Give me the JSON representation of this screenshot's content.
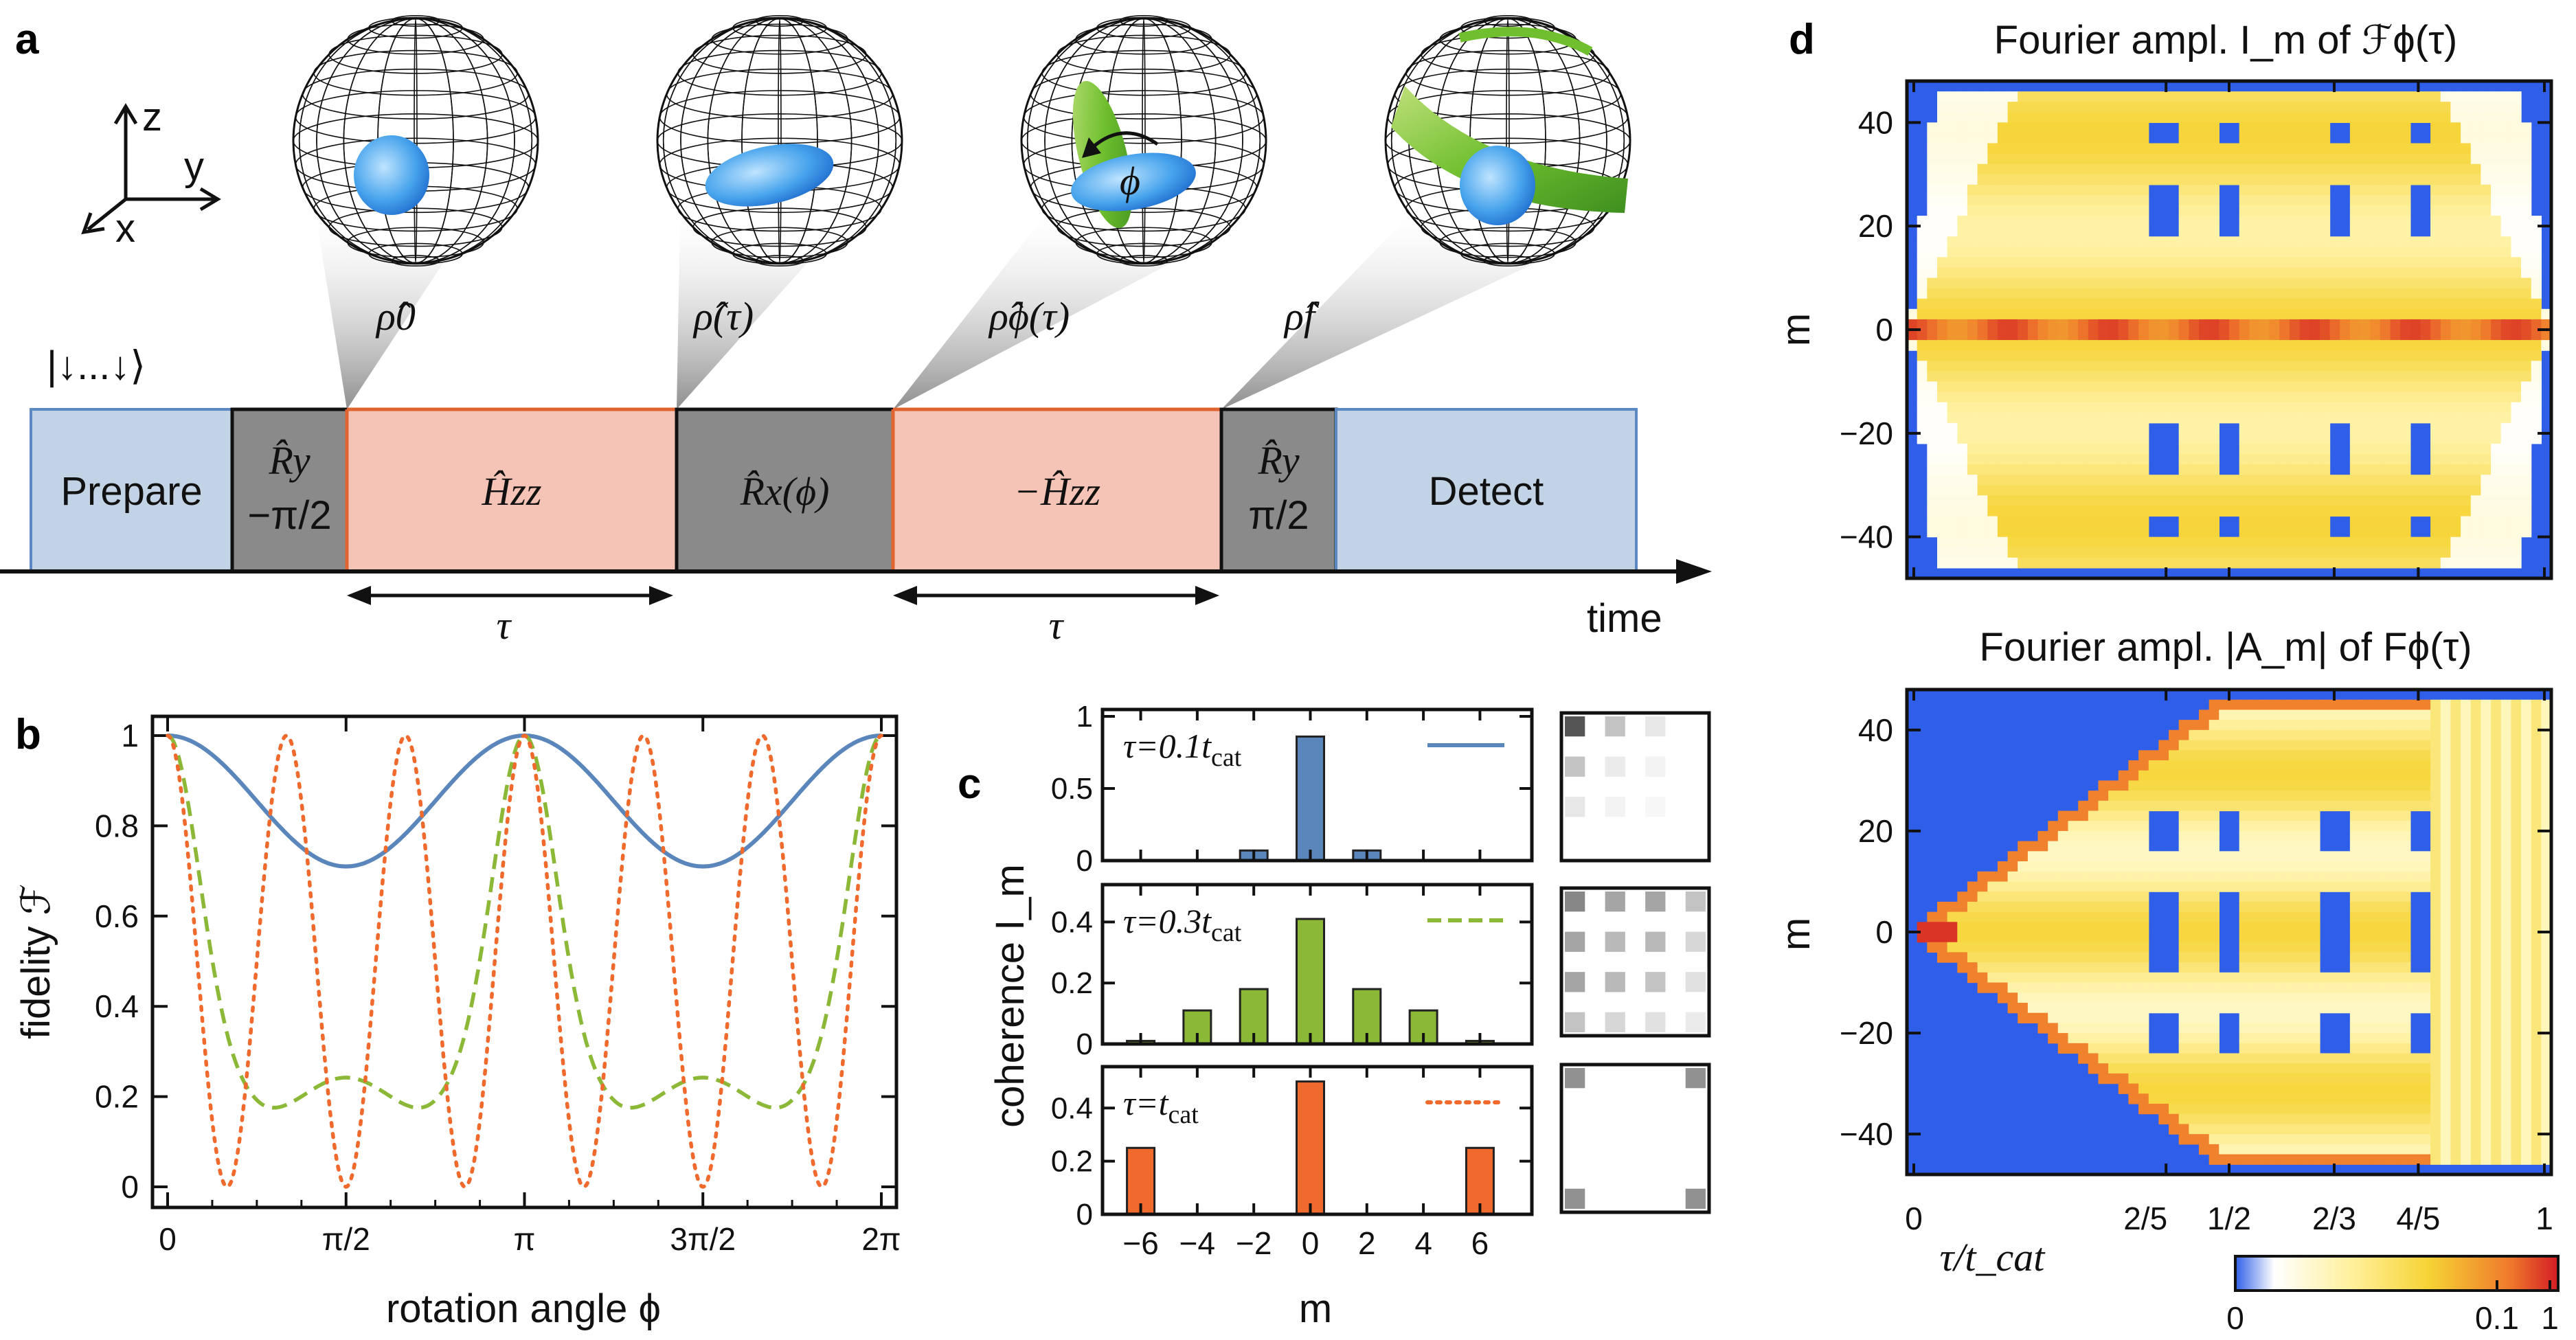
{
  "colors": {
    "prep": "#c3d3e6",
    "prep_edge": "#5b88c2",
    "hzz": "#f6c4b6",
    "hzz_edge": "#e06430",
    "rot": "#8a8a8a",
    "axis": "#111111",
    "blue": "#5a86bb",
    "green": "#8cb838",
    "orange": "#f06a2e",
    "hm_low": "#2f5fe8",
    "hm_mid": "#f6d335",
    "hm_high": "#d31c24"
  },
  "panel_a": {
    "label": "a",
    "axes": {
      "z": "z",
      "y": "y",
      "x": "x"
    },
    "initial_state": "|↓...↓⟩",
    "blocks": [
      {
        "kind": "prep",
        "text": "Prepare",
        "sub": ""
      },
      {
        "kind": "rot",
        "text": "R̂y",
        "sub": "−π/2"
      },
      {
        "kind": "hzz",
        "text": "Ĥzz",
        "sub": ""
      },
      {
        "kind": "rot",
        "text": "R̂x(ϕ)",
        "sub": ""
      },
      {
        "kind": "hzz",
        "text": "−Ĥzz",
        "sub": ""
      },
      {
        "kind": "rot",
        "text": "R̂y",
        "sub": "π/2"
      },
      {
        "kind": "prep",
        "text": "Detect",
        "sub": ""
      }
    ],
    "spheres": [
      {
        "label": "ρ̂0",
        "phi": ""
      },
      {
        "label": "ρ̂(τ)",
        "phi": ""
      },
      {
        "label": "ρ̂ϕ(τ)",
        "phi": "ϕ"
      },
      {
        "label": "ρ̂f",
        "phi": ""
      }
    ],
    "tau_labels": [
      "τ",
      "τ"
    ],
    "time_label": "time"
  },
  "panel_b": {
    "label": "b",
    "chart_data": {
      "type": "line",
      "ylabel": "fidelity ℱ",
      "xlabel": "rotation angle ϕ",
      "xlim": [
        0,
        6.2832
      ],
      "ylim": [
        0,
        1
      ],
      "xticks": [
        "0",
        "π/2",
        "π",
        "3π/2",
        "2π"
      ],
      "yticks": [
        "0",
        "0.2",
        "0.4",
        "0.6",
        "0.8",
        "1"
      ],
      "series": [
        {
          "name": "τ=0.1 t_cat",
          "style": "solid",
          "color": "#5a86bb",
          "formula": "1 - 0.29 sin²ϕ",
          "min": 0.71
        },
        {
          "name": "τ=0.3 t_cat",
          "style": "dashed",
          "color": "#8cb838",
          "min": 0.15,
          "local_max_at_pi_over_2": 0.24
        },
        {
          "name": "τ=t_cat",
          "style": "dotted",
          "color": "#f06a2e",
          "formula": "cos²(3ϕ)"
        }
      ]
    }
  },
  "panel_c": {
    "label": "c",
    "ylabel": "coherence I_m",
    "xlabel": "m",
    "chart_data": {
      "type": "bar",
      "categories": [
        -6,
        -4,
        -2,
        0,
        2,
        4,
        6
      ],
      "xticks": [
        "−6",
        "−4",
        "−2",
        "0",
        "2",
        "4",
        "6"
      ],
      "subplots": [
        {
          "legend": "τ=0.1 t_cat",
          "tau": "τ=0.1",
          "sub": "cat",
          "color": "#5a86bb",
          "style": "solid",
          "values": [
            0,
            0,
            0.07,
            0.86,
            0.07,
            0,
            0
          ],
          "ylim": [
            0,
            1
          ],
          "yticks": [
            "0",
            "0.5",
            "1"
          ]
        },
        {
          "legend": "τ=0.3 t_cat",
          "tau": "τ=0.3",
          "sub": "cat",
          "color": "#8cb838",
          "style": "dashed",
          "values": [
            0.01,
            0.11,
            0.18,
            0.41,
            0.18,
            0.11,
            0.01
          ],
          "ylim": [
            0,
            0.5
          ],
          "yticks": [
            "0",
            "0.2",
            "0.4"
          ]
        },
        {
          "legend": "τ=t_cat",
          "tau": "τ=",
          "sub": "cat",
          "color": "#f06a2e",
          "style": "dotted",
          "values": [
            0.25,
            0,
            0,
            0.5,
            0,
            0,
            0.25
          ],
          "ylim": [
            0,
            0.53
          ],
          "yticks": [
            "0",
            "0.2",
            "0.4"
          ]
        }
      ]
    }
  },
  "panel_d": {
    "label": "d",
    "top_title": "Fourier ampl. I_m of ℱϕ(τ)",
    "bottom_title": "Fourier ampl. |A_m| of Fϕ(τ)",
    "chart_data": {
      "type": "heatmap",
      "ylabel": "m",
      "xlabel": "τ/t_cat",
      "ylim": [
        -48,
        48
      ],
      "yticks": [
        "40",
        "20",
        "0",
        "−20",
        "−40"
      ],
      "xticks": [
        "0",
        "2/5",
        "1/2",
        "2/3",
        "4/5",
        "1"
      ],
      "xtick_values": [
        0,
        0.4,
        0.5,
        0.6667,
        0.8,
        1
      ],
      "colorbar": {
        "ticks": [
          "0",
          "0.1",
          "1"
        ],
        "scale": "log"
      }
    }
  }
}
